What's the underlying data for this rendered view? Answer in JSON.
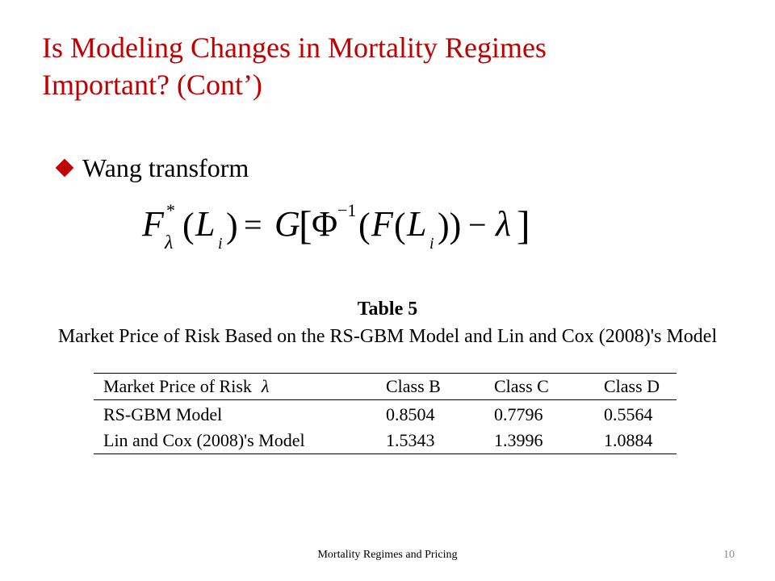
{
  "slide": {
    "title_line1": "Is Modeling Changes in Mortality Regimes",
    "title_line2": "Important? (Cont’)",
    "bullet": "Wang transform",
    "bullet_icon": "diamond-bullet-icon",
    "formula": {
      "lhs_F": "F",
      "star": "*",
      "lambda_sub": "λ",
      "open_paren": "(",
      "L": "L",
      "i_sub": "i",
      "close_paren": ")",
      "equals": "=",
      "G": "G",
      "open_bracket": "[",
      "Phi": "Φ",
      "inverse_sup": "−1",
      "open_paren2": "(",
      "F2": "F",
      "open_paren3": "(",
      "L2": "L",
      "i_sub2": "i",
      "close_paren2": "))",
      "minus": "−",
      "lambda": "λ",
      "close_bracket": "]"
    }
  },
  "table": {
    "number": "Table 5",
    "caption": "Market Price of Risk Based on the RS-GBM Model and Lin and Cox (2008)'s Model",
    "header": {
      "label": "Market Price of Risk",
      "lambda": "λ",
      "columns": [
        "Class B",
        "Class C",
        "Class D"
      ]
    },
    "rows": [
      {
        "label": "RS-GBM Model",
        "values": [
          "0.8504",
          "0.7796",
          "0.5564"
        ]
      },
      {
        "label": "Lin and Cox (2008)'s Model",
        "values": [
          "1.5343",
          "1.3996",
          "1.0884"
        ]
      }
    ]
  },
  "footer": {
    "text": "Mortality Regimes and Pricing",
    "page": "10"
  },
  "colors": {
    "title": "#c00000",
    "bullet": "#c00000",
    "text": "#000000",
    "page_number": "#8c8c8c"
  }
}
